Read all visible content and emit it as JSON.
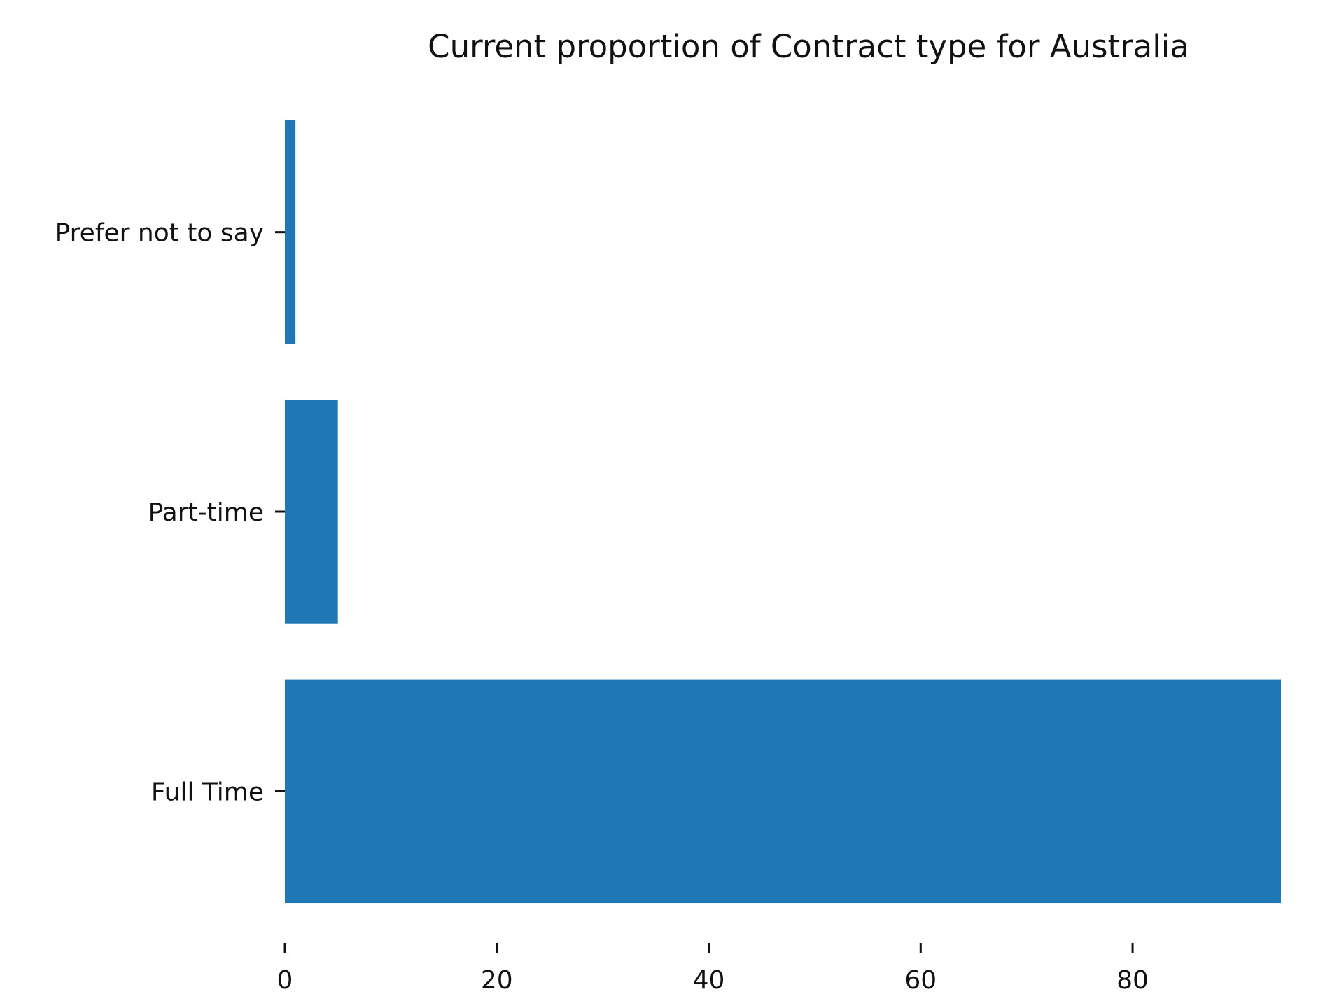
{
  "chart_data": {
    "type": "bar",
    "orientation": "horizontal",
    "title": "Current proportion of Contract type for Australia",
    "xlabel": "",
    "ylabel": "",
    "categories": [
      "Full Time",
      "Part-time",
      "Prefer not to say"
    ],
    "values": [
      94,
      5,
      1
    ],
    "xlim": [
      0,
      94
    ],
    "x_ticks": [
      0,
      20,
      40,
      60,
      80
    ],
    "grid": false,
    "legend": "none",
    "bar_color": "#1f77b4"
  }
}
